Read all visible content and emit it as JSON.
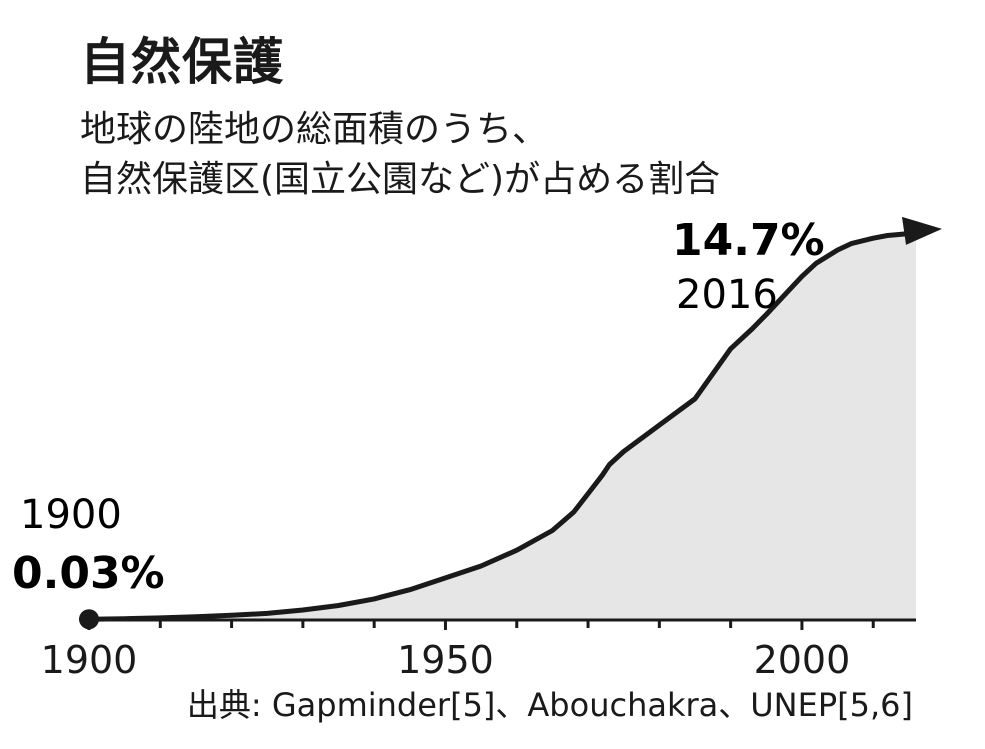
{
  "title": "自然保護",
  "subtitle_lines": [
    "地球の陸地の総面積のうち、",
    "自然保護区(国立公園など)が占める割合"
  ],
  "source": "出典: Gapminder[5]、Abouchakra、UNEP[5,6]",
  "annotations": {
    "start": {
      "year": "1900",
      "value": "0.03%"
    },
    "end": {
      "year": "2016",
      "value": "14.7%"
    }
  },
  "colors": {
    "line": "#1a1a1a",
    "area": "#e6e6e6",
    "axis": "#1a1a1a"
  },
  "chart_data": {
    "type": "area",
    "xlim": [
      1900,
      2016
    ],
    "ylim": [
      0,
      15
    ],
    "xticks": [
      1900,
      1950,
      2000
    ],
    "minor_ticks_every": 10,
    "grid": false,
    "end_marker": "arrow",
    "start_marker": "dot",
    "x": [
      1900,
      1905,
      1910,
      1915,
      1920,
      1925,
      1930,
      1935,
      1940,
      1945,
      1950,
      1955,
      1960,
      1965,
      1968,
      1970,
      1972,
      1973,
      1975,
      1980,
      1985,
      1990,
      1993,
      1995,
      2000,
      2002,
      2005,
      2007,
      2010,
      2012,
      2014,
      2016
    ],
    "y": [
      0.03,
      0.05,
      0.08,
      0.12,
      0.18,
      0.25,
      0.38,
      0.55,
      0.8,
      1.15,
      1.6,
      2.05,
      2.65,
      3.4,
      4.1,
      4.8,
      5.5,
      5.9,
      6.4,
      7.4,
      8.4,
      10.3,
      11.05,
      11.6,
      13.05,
      13.55,
      14.05,
      14.3,
      14.5,
      14.6,
      14.65,
      14.7
    ]
  }
}
